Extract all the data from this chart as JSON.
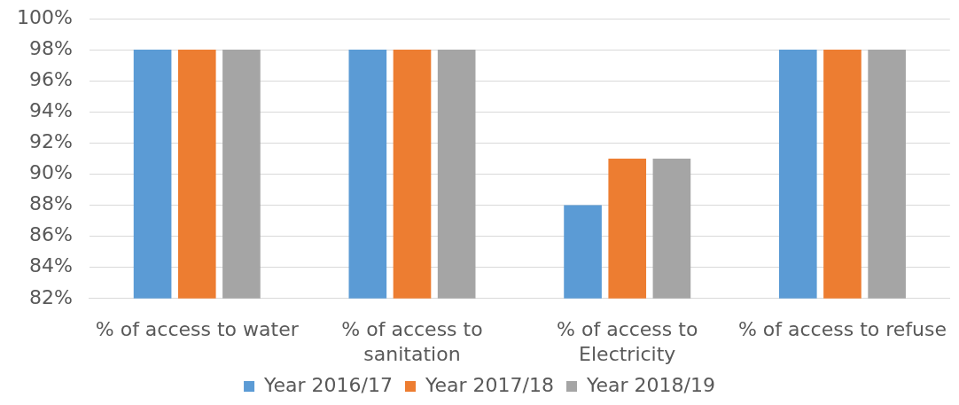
{
  "chart_data": {
    "type": "bar",
    "categories": [
      "% of access to water",
      "% of access to sanitation",
      "% of access to Electricity",
      "% of access to refuse"
    ],
    "series": [
      {
        "name": "Year 2016/17",
        "color": "#5b9bd5",
        "values": [
          98,
          98,
          88,
          98
        ]
      },
      {
        "name": "Year 2017/18",
        "color": "#ed7d31",
        "values": [
          98,
          98,
          91,
          98
        ]
      },
      {
        "name": "Year 2018/19",
        "color": "#a5a5a5",
        "values": [
          98,
          98,
          91,
          98
        ]
      }
    ],
    "ylim": [
      82,
      100
    ],
    "yticks": [
      {
        "value": 82,
        "label": "82%"
      },
      {
        "value": 84,
        "label": "84%"
      },
      {
        "value": 86,
        "label": "86%"
      },
      {
        "value": 88,
        "label": "88%"
      },
      {
        "value": 90,
        "label": "90%"
      },
      {
        "value": 92,
        "label": "92%"
      },
      {
        "value": 94,
        "label": "94%"
      },
      {
        "value": 96,
        "label": "96%"
      },
      {
        "value": 98,
        "label": "98%"
      },
      {
        "value": 100,
        "label": "100%"
      }
    ],
    "grid": "y",
    "legend": "bottom"
  }
}
